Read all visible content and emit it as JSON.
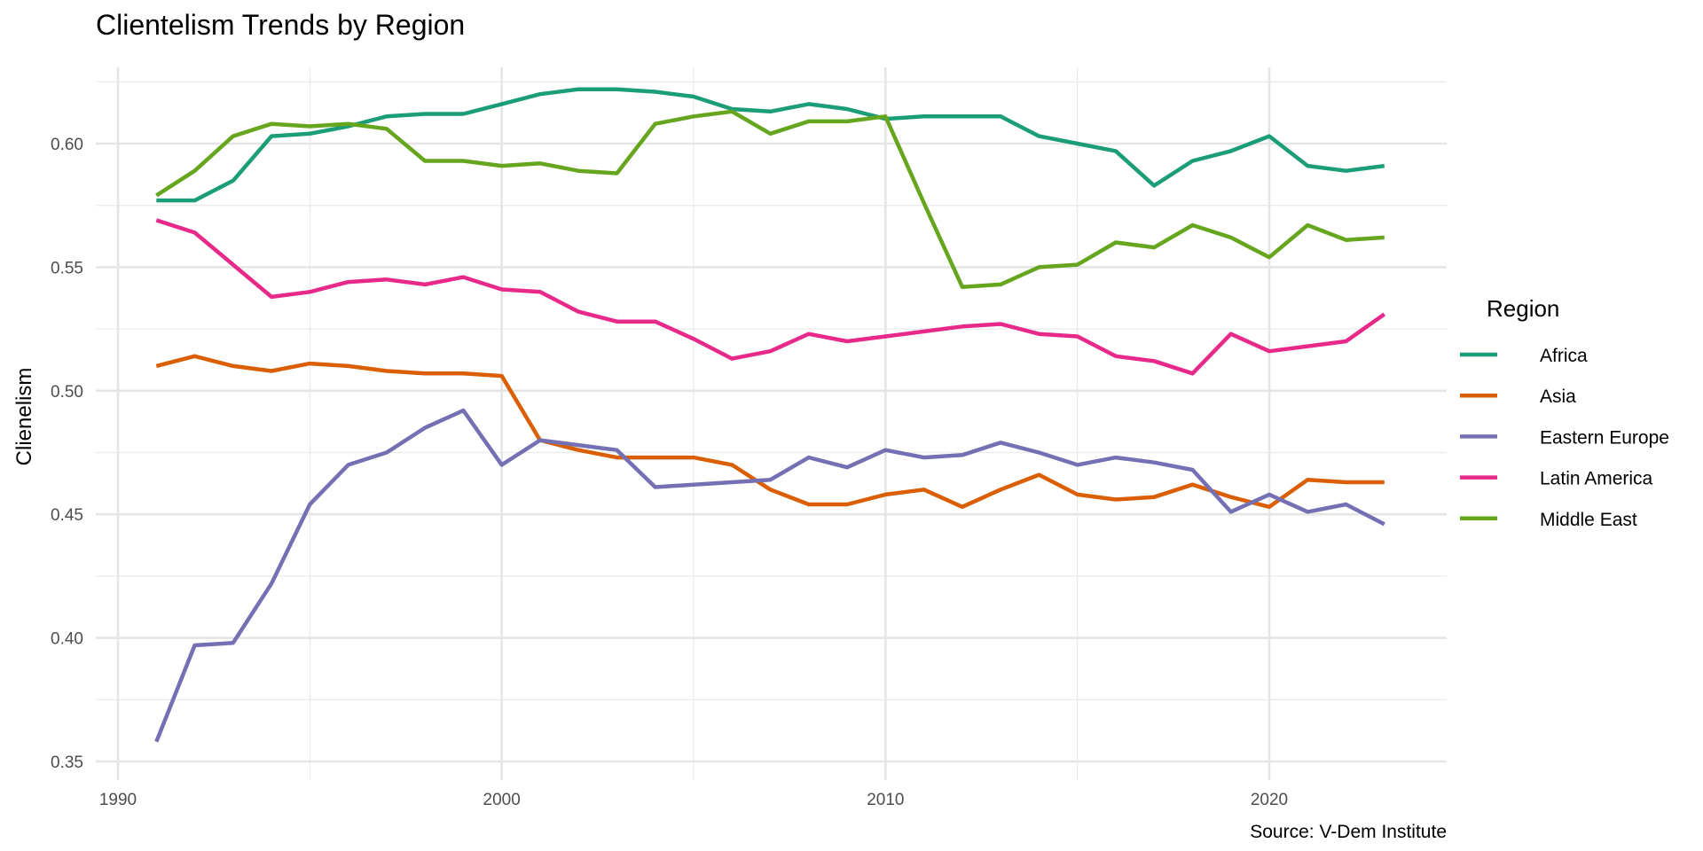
{
  "chart_data": {
    "type": "line",
    "title": "Clientelism Trends by Region",
    "xlabel": "",
    "ylabel": "Clienelism",
    "caption": "Source: V-Dem Institute",
    "xlim": [
      1989.5,
      2024.5
    ],
    "ylim": [
      0.3465,
      0.633
    ],
    "grid": true,
    "x_ticks": [
      1990,
      2000,
      2010,
      2020
    ],
    "x_tick_labels": [
      "1990",
      "2000",
      "2010",
      "2020"
    ],
    "y_ticks": [
      0.35,
      0.4,
      0.45,
      0.5,
      0.55,
      0.6
    ],
    "y_tick_labels": [
      "0.35",
      "0.40",
      "0.45",
      "0.50",
      "0.55",
      "0.60"
    ],
    "legend": {
      "title": "Region",
      "placement": "right"
    },
    "x": [
      1991,
      1992,
      1993,
      1994,
      1995,
      1996,
      1997,
      1998,
      1999,
      2000,
      2001,
      2002,
      2003,
      2004,
      2005,
      2006,
      2007,
      2008,
      2009,
      2010,
      2011,
      2012,
      2013,
      2014,
      2015,
      2016,
      2017,
      2018,
      2019,
      2020,
      2021,
      2022,
      2023
    ],
    "series": [
      {
        "name": "Africa",
        "color": "#1B9E77",
        "values": [
          0.577,
          0.577,
          0.585,
          0.603,
          0.604,
          0.607,
          0.611,
          0.612,
          0.612,
          0.616,
          0.62,
          0.622,
          0.622,
          0.621,
          0.619,
          0.614,
          0.613,
          0.616,
          0.614,
          0.61,
          0.611,
          0.611,
          0.611,
          0.603,
          0.6,
          0.597,
          0.583,
          0.593,
          0.597,
          0.603,
          0.591,
          0.589,
          0.591
        ]
      },
      {
        "name": "Asia",
        "color": "#D95F02",
        "values": [
          0.51,
          0.514,
          0.51,
          0.508,
          0.511,
          0.51,
          0.508,
          0.507,
          0.507,
          0.506,
          0.48,
          0.476,
          0.473,
          0.473,
          0.473,
          0.47,
          0.46,
          0.454,
          0.454,
          0.458,
          0.46,
          0.453,
          0.46,
          0.466,
          0.458,
          0.456,
          0.457,
          0.462,
          0.457,
          0.453,
          0.464,
          0.463,
          0.463
        ]
      },
      {
        "name": "Eastern Europe",
        "color": "#7570B3",
        "values": [
          0.358,
          0.397,
          0.398,
          0.422,
          0.454,
          0.47,
          0.475,
          0.485,
          0.492,
          0.47,
          0.48,
          0.478,
          0.476,
          0.461,
          0.462,
          0.463,
          0.464,
          0.473,
          0.469,
          0.476,
          0.473,
          0.474,
          0.479,
          0.475,
          0.47,
          0.473,
          0.471,
          0.468,
          0.451,
          0.458,
          0.451,
          0.454,
          0.446
        ]
      },
      {
        "name": "Latin America",
        "color": "#E7298A",
        "values": [
          0.569,
          0.564,
          0.551,
          0.538,
          0.54,
          0.544,
          0.545,
          0.543,
          0.546,
          0.541,
          0.54,
          0.532,
          0.528,
          0.528,
          0.521,
          0.513,
          0.516,
          0.523,
          0.52,
          0.522,
          0.524,
          0.526,
          0.527,
          0.523,
          0.522,
          0.514,
          0.512,
          0.507,
          0.523,
          0.516,
          0.518,
          0.52,
          0.531
        ]
      },
      {
        "name": "Middle East",
        "color": "#66A61E",
        "values": [
          0.579,
          0.589,
          0.603,
          0.608,
          0.607,
          0.608,
          0.606,
          0.593,
          0.593,
          0.591,
          0.592,
          0.589,
          0.588,
          0.608,
          0.611,
          0.613,
          0.604,
          0.609,
          0.609,
          0.611,
          0.576,
          0.542,
          0.543,
          0.55,
          0.551,
          0.56,
          0.558,
          0.567,
          0.562,
          0.554,
          0.567,
          0.561,
          0.562
        ]
      }
    ]
  }
}
